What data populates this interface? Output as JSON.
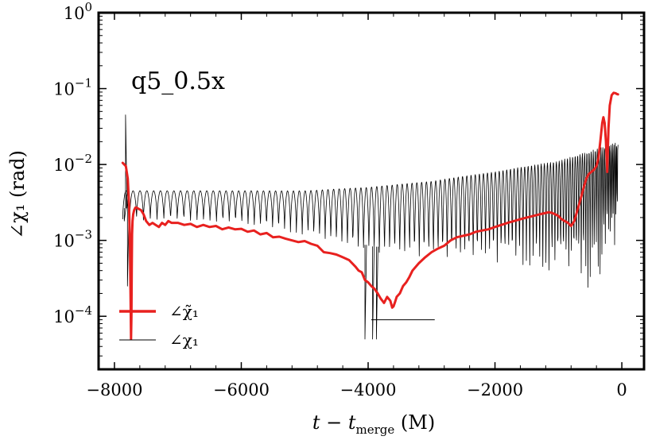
{
  "chart_data": {
    "type": "line",
    "title": "",
    "annotation": "q5_0.5x",
    "xlabel": "t − t_merge (M)",
    "xlabel_parts": {
      "t": "t",
      "minus": " − ",
      "tm": "t",
      "sub": "merge",
      "unit": " (M)"
    },
    "ylabel": "∠χ₁ (rad)",
    "xlim": [
      -8250,
      350
    ],
    "ylim": [
      2e-05,
      1
    ],
    "yscale": "log",
    "grid": false,
    "legend_position": "bottom-left",
    "xticks": [
      -8000,
      -6000,
      -4000,
      -2000,
      0
    ],
    "xtick_labels": [
      "−8000",
      "−6000",
      "−4000",
      "−2000",
      "0"
    ],
    "yticks": [
      1,
      0.1,
      0.01,
      0.001,
      0.0001
    ],
    "ytick_labels": [
      {
        "base": "10",
        "exp": "0"
      },
      {
        "base": "10",
        "exp": "−1"
      },
      {
        "base": "10",
        "exp": "−2"
      },
      {
        "base": "10",
        "exp": "−3"
      },
      {
        "base": "10",
        "exp": "−4"
      }
    ],
    "series": [
      {
        "name": "∠χ̃₁",
        "color": "#e8211f",
        "width": 3,
        "x": [
          -7870,
          -7820,
          -7790,
          -7770,
          -7755,
          -7745,
          -7738,
          -7732,
          -7727,
          -7722,
          -7715,
          -7705,
          -7690,
          -7670,
          -7650,
          -7620,
          -7580,
          -7540,
          -7500,
          -7450,
          -7400,
          -7350,
          -7300,
          -7250,
          -7200,
          -7150,
          -7100,
          -7000,
          -6900,
          -6800,
          -6700,
          -6600,
          -6500,
          -6400,
          -6300,
          -6200,
          -6100,
          -6000,
          -5900,
          -5800,
          -5700,
          -5600,
          -5500,
          -5400,
          -5300,
          -5200,
          -5100,
          -5000,
          -4900,
          -4800,
          -4700,
          -4600,
          -4500,
          -4400,
          -4300,
          -4200,
          -4150,
          -4100,
          -4050,
          -4000,
          -3950,
          -3900,
          -3850,
          -3800,
          -3750,
          -3700,
          -3650,
          -3620,
          -3600,
          -3580,
          -3550,
          -3500,
          -3450,
          -3400,
          -3350,
          -3300,
          -3200,
          -3100,
          -3000,
          -2900,
          -2800,
          -2700,
          -2600,
          -2500,
          -2400,
          -2300,
          -2200,
          -2100,
          -2000,
          -1900,
          -1800,
          -1700,
          -1600,
          -1500,
          -1400,
          -1300,
          -1200,
          -1150,
          -1100,
          -1050,
          -1000,
          -950,
          -900,
          -850,
          -800,
          -750,
          -700,
          -650,
          -600,
          -560,
          -520,
          -480,
          -440,
          -400,
          -370,
          -340,
          -310,
          -290,
          -270,
          -250,
          -230,
          -210,
          -190,
          -160,
          -130,
          -100,
          -80,
          -60
        ],
        "y": [
          0.0105,
          0.0095,
          0.0065,
          0.003,
          0.0008,
          0.00015,
          5e-05,
          0.0001,
          0.0004,
          0.0012,
          0.0018,
          0.0022,
          0.0025,
          0.0027,
          0.0027,
          0.0026,
          0.0025,
          0.0022,
          0.0018,
          0.0016,
          0.0017,
          0.0016,
          0.0015,
          0.0017,
          0.0016,
          0.0018,
          0.0017,
          0.0017,
          0.0016,
          0.00165,
          0.0015,
          0.0016,
          0.0015,
          0.00155,
          0.0014,
          0.00148,
          0.0014,
          0.00142,
          0.0013,
          0.00135,
          0.0012,
          0.00125,
          0.0011,
          0.00112,
          0.00105,
          0.001,
          0.00095,
          0.00098,
          0.0009,
          0.00085,
          0.0007,
          0.00068,
          0.00065,
          0.0006,
          0.00055,
          0.00045,
          0.0004,
          0.00038,
          0.0003,
          0.00028,
          0.00025,
          0.00023,
          0.0002,
          0.00017,
          0.00015,
          0.00018,
          0.00016,
          0.00013,
          0.000135,
          0.00015,
          0.00018,
          0.0002,
          0.00025,
          0.00028,
          0.00033,
          0.0004,
          0.0005,
          0.0006,
          0.0007,
          0.00078,
          0.00085,
          0.001,
          0.0011,
          0.00115,
          0.0012,
          0.0013,
          0.00135,
          0.0014,
          0.0015,
          0.0016,
          0.0017,
          0.0018,
          0.0019,
          0.002,
          0.0021,
          0.0022,
          0.0023,
          0.00235,
          0.0023,
          0.0022,
          0.0021,
          0.0019,
          0.0018,
          0.0017,
          0.00155,
          0.0018,
          0.0025,
          0.0035,
          0.005,
          0.0065,
          0.0075,
          0.008,
          0.0085,
          0.0095,
          0.012,
          0.02,
          0.035,
          0.042,
          0.035,
          0.02,
          0.008,
          0.03,
          0.06,
          0.082,
          0.088,
          0.087,
          0.085,
          0.084
        ]
      },
      {
        "name": "∠χ₁",
        "color": "#000000",
        "width": 0.8,
        "generator": "oscillation",
        "t_start": -7870,
        "t_end": -60,
        "envelope_x": [
          -7870,
          -7600,
          -7000,
          -6000,
          -5000,
          -4000,
          -3000,
          -2000,
          -1000,
          -500,
          -200,
          -60
        ],
        "envelope_top": [
          0.0045,
          0.0045,
          0.0045,
          0.0045,
          0.0045,
          0.005,
          0.006,
          0.008,
          0.011,
          0.015,
          0.018,
          0.02
        ],
        "floor_x": [
          -7870,
          -6000,
          -4000,
          -2000,
          -1000,
          -500,
          -60
        ],
        "floor_y": [
          0.0019,
          0.0016,
          0.0006,
          0.00045,
          0.0003,
          0.0002,
          0.0005
        ],
        "spike_x": [
          -7845,
          -7825,
          -7810,
          -7795,
          -4050,
          -3930,
          -3870
        ],
        "spike_y": [
          0.0018,
          0.045,
          0.004,
          0.00025,
          5e-05,
          5e-05,
          5e-05
        ]
      }
    ],
    "scale_bar": {
      "x": [
        -3950,
        -2950
      ],
      "y": 9e-05
    }
  }
}
